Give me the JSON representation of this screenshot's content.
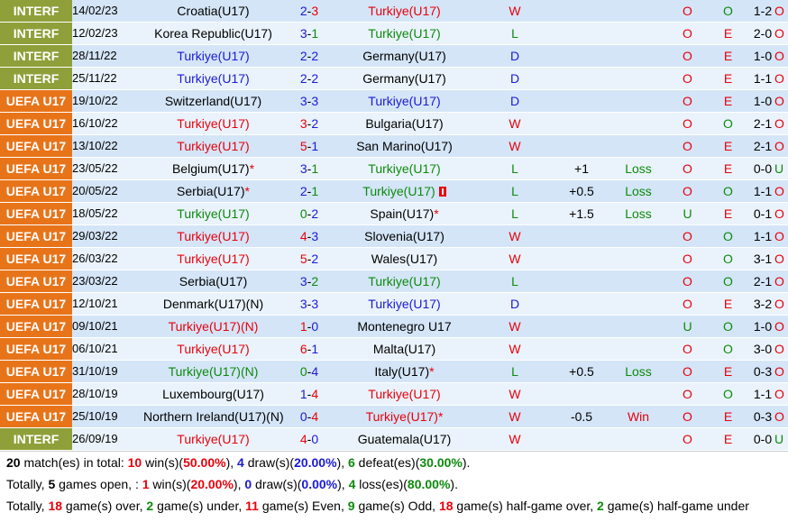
{
  "colors": {
    "win": "#e8000b",
    "draw": "#1a1ad6",
    "loss": "#0c8a0c",
    "league_uefa": "#e8741a",
    "league_interf": "#8fa03a",
    "row_dark": "#d4e5f7",
    "row_light": "#eaf3fb"
  },
  "matches": [
    {
      "league": "INTERF",
      "date": "14/02/23",
      "home": "Croatia(U17)",
      "score": "2-3",
      "away": "Turkiye(U17)",
      "result": "W",
      "handicap": "",
      "handicap_result": "",
      "ou1": "O",
      "ou2": "O",
      "ht": "1-2",
      "ou3": "O"
    },
    {
      "league": "INTERF",
      "date": "12/02/23",
      "home": "Korea Republic(U17)",
      "score": "3-1",
      "away": "Turkiye(U17)",
      "result": "L",
      "handicap": "",
      "handicap_result": "",
      "ou1": "O",
      "ou2": "E",
      "ht": "2-0",
      "ou3": "O"
    },
    {
      "league": "INTERF",
      "date": "28/11/22",
      "home": "Turkiye(U17)",
      "score": "2-2",
      "away": "Germany(U17)",
      "result": "D",
      "handicap": "",
      "handicap_result": "",
      "ou1": "O",
      "ou2": "E",
      "ht": "1-0",
      "ou3": "O"
    },
    {
      "league": "INTERF",
      "date": "25/11/22",
      "home": "Turkiye(U17)",
      "score": "2-2",
      "away": "Germany(U17)",
      "result": "D",
      "handicap": "",
      "handicap_result": "",
      "ou1": "O",
      "ou2": "E",
      "ht": "1-1",
      "ou3": "O"
    },
    {
      "league": "UEFA U17",
      "date": "19/10/22",
      "home": "Switzerland(U17)",
      "score": "3-3",
      "away": "Turkiye(U17)",
      "result": "D",
      "handicap": "",
      "handicap_result": "",
      "ou1": "O",
      "ou2": "E",
      "ht": "1-0",
      "ou3": "O"
    },
    {
      "league": "UEFA U17",
      "date": "16/10/22",
      "home": "Turkiye(U17)",
      "score": "3-2",
      "away": "Bulgaria(U17)",
      "result": "W",
      "handicap": "",
      "handicap_result": "",
      "ou1": "O",
      "ou2": "O",
      "ht": "2-1",
      "ou3": "O"
    },
    {
      "league": "UEFA U17",
      "date": "13/10/22",
      "home": "Turkiye(U17)",
      "score": "5-1",
      "away": "San Marino(U17)",
      "result": "W",
      "handicap": "",
      "handicap_result": "",
      "ou1": "O",
      "ou2": "E",
      "ht": "2-1",
      "ou3": "O"
    },
    {
      "league": "UEFA U17",
      "date": "23/05/22",
      "home": "Belgium(U17)",
      "home_star": "*",
      "score": "3-1",
      "away": "Turkiye(U17)",
      "result": "L",
      "handicap": "+1",
      "handicap_result": "Loss",
      "ou1": "O",
      "ou2": "E",
      "ht": "0-0",
      "ou3": "U"
    },
    {
      "league": "UEFA U17",
      "date": "20/05/22",
      "home": "Serbia(U17)",
      "home_star": "*",
      "score": "2-1",
      "away": "Turkiye(U17)",
      "away_card": "1",
      "result": "L",
      "handicap": "+0.5",
      "handicap_result": "Loss",
      "ou1": "O",
      "ou2": "O",
      "ht": "1-1",
      "ou3": "O"
    },
    {
      "league": "UEFA U17",
      "date": "18/05/22",
      "home": "Turkiye(U17)",
      "score": "0-2",
      "away": "Spain(U17)",
      "away_star": "*",
      "result": "L",
      "handicap": "+1.5",
      "handicap_result": "Loss",
      "ou1": "U",
      "ou2": "E",
      "ht": "0-1",
      "ou3": "O"
    },
    {
      "league": "UEFA U17",
      "date": "29/03/22",
      "home": "Turkiye(U17)",
      "score": "4-3",
      "away": "Slovenia(U17)",
      "result": "W",
      "handicap": "",
      "handicap_result": "",
      "ou1": "O",
      "ou2": "O",
      "ht": "1-1",
      "ou3": "O"
    },
    {
      "league": "UEFA U17",
      "date": "26/03/22",
      "home": "Turkiye(U17)",
      "score": "5-2",
      "away": "Wales(U17)",
      "result": "W",
      "handicap": "",
      "handicap_result": "",
      "ou1": "O",
      "ou2": "O",
      "ht": "3-1",
      "ou3": "O"
    },
    {
      "league": "UEFA U17",
      "date": "23/03/22",
      "home": "Serbia(U17)",
      "score": "3-2",
      "away": "Turkiye(U17)",
      "result": "L",
      "handicap": "",
      "handicap_result": "",
      "ou1": "O",
      "ou2": "O",
      "ht": "2-1",
      "ou3": "O"
    },
    {
      "league": "UEFA U17",
      "date": "12/10/21",
      "home": "Denmark(U17)(N)",
      "score": "3-3",
      "away": "Turkiye(U17)",
      "result": "D",
      "handicap": "",
      "handicap_result": "",
      "ou1": "O",
      "ou2": "E",
      "ht": "3-2",
      "ou3": "O"
    },
    {
      "league": "UEFA U17",
      "date": "09/10/21",
      "home": "Turkiye(U17)(N)",
      "score": "1-0",
      "away": "Montenegro U17",
      "result": "W",
      "handicap": "",
      "handicap_result": "",
      "ou1": "U",
      "ou2": "O",
      "ht": "1-0",
      "ou3": "O"
    },
    {
      "league": "UEFA U17",
      "date": "06/10/21",
      "home": "Turkiye(U17)",
      "score": "6-1",
      "away": "Malta(U17)",
      "result": "W",
      "handicap": "",
      "handicap_result": "",
      "ou1": "O",
      "ou2": "O",
      "ht": "3-0",
      "ou3": "O"
    },
    {
      "league": "UEFA U17",
      "date": "31/10/19",
      "home": "Turkiye(U17)(N)",
      "score": "0-4",
      "away": "Italy(U17)",
      "away_star": "*",
      "result": "L",
      "handicap": "+0.5",
      "handicap_result": "Loss",
      "ou1": "O",
      "ou2": "E",
      "ht": "0-3",
      "ou3": "O"
    },
    {
      "league": "UEFA U17",
      "date": "28/10/19",
      "home": "Luxembourg(U17)",
      "score": "1-4",
      "away": "Turkiye(U17)",
      "result": "W",
      "handicap": "",
      "handicap_result": "",
      "ou1": "O",
      "ou2": "O",
      "ht": "1-1",
      "ou3": "O"
    },
    {
      "league": "UEFA U17",
      "date": "25/10/19",
      "home": "Northern Ireland(U17)(N)",
      "score": "0-4",
      "away": "Turkiye(U17)",
      "away_star": "*",
      "result": "W",
      "handicap": "-0.5",
      "handicap_result": "Win",
      "ou1": "O",
      "ou2": "E",
      "ht": "0-3",
      "ou3": "O"
    },
    {
      "league": "INTERF",
      "date": "26/09/19",
      "home": "Turkiye(U17)",
      "score": "4-0",
      "away": "Guatemala(U17)",
      "result": "W",
      "handicap": "",
      "handicap_result": "",
      "ou1": "O",
      "ou2": "E",
      "ht": "0-0",
      "ou3": "U"
    }
  ],
  "summary": {
    "line1": {
      "count": "20",
      "t1": " match(es) in total: ",
      "wins": "10",
      "t2": " win(s)(",
      "win_pct": "50.00%",
      "t3": "), ",
      "draws": "4",
      "t4": " draw(s)(",
      "draw_pct": "20.00%",
      "t5": "), ",
      "defeats": "6",
      "t6": " defeat(es)(",
      "def_pct": "30.00%",
      "t7": ")."
    },
    "line2": {
      "t1": "Totally, ",
      "open": "5",
      "t2": " games open, : ",
      "wins": "1",
      "t3": " win(s)(",
      "win_pct": "20.00%",
      "t4": "), ",
      "draws": "0",
      "t5": " draw(s)(",
      "draw_pct": "0.00%",
      "t6": "), ",
      "losses": "4",
      "t7": " loss(es)(",
      "loss_pct": "80.00%",
      "t8": ")."
    },
    "line3": {
      "t1": "Totally, ",
      "over": "18",
      "t2": " game(s) over, ",
      "under": "2",
      "t3": " game(s) under, ",
      "even": "11",
      "t4": " game(s) Even, ",
      "odd": "9",
      "t5": " game(s) Odd, ",
      "hg_over": "18",
      "t6": " game(s) half-game over, ",
      "hg_under": "2",
      "t7": " game(s) half-game under"
    }
  }
}
